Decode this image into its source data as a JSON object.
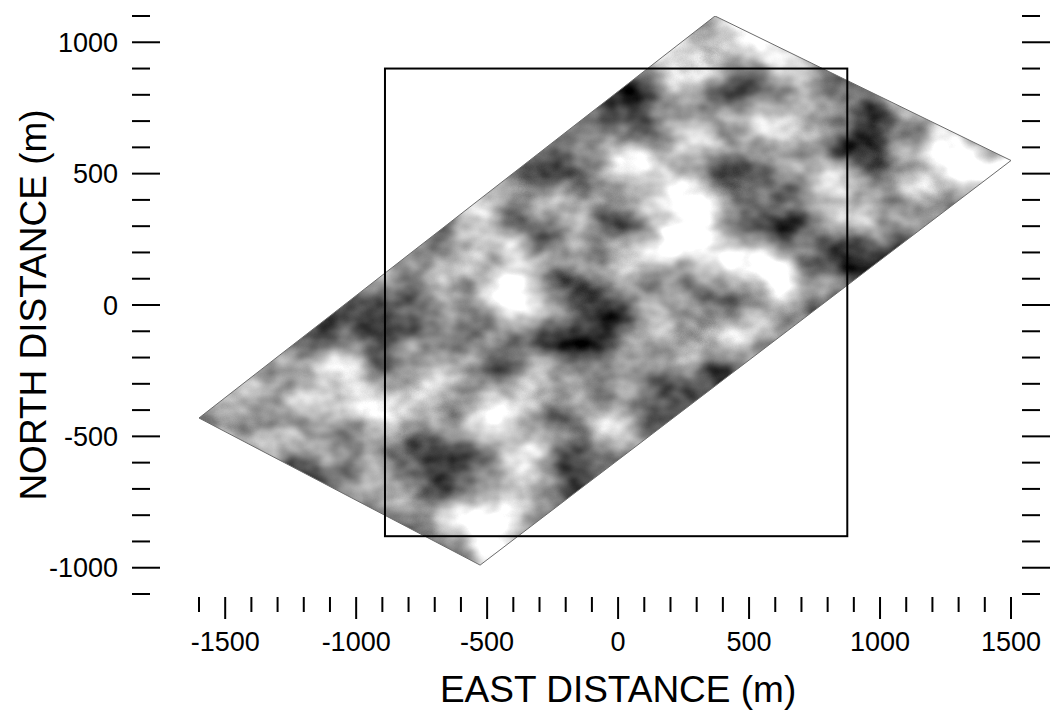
{
  "chart_data": {
    "type": "map",
    "x_label": "EAST DISTANCE (m)",
    "y_label": "NORTH DISTANCE (m)",
    "xlim": [
      -1600,
      1500
    ],
    "ylim": [
      -1100,
      1100
    ],
    "xticks": [
      -1500,
      -1000,
      -500,
      0,
      500,
      1000,
      1500
    ],
    "yticks": [
      -1000,
      -500,
      0,
      500,
      1000
    ],
    "xminor_ticks": [
      -1600,
      -1400,
      -1300,
      -1200,
      -1100,
      -900,
      -800,
      -700,
      -600,
      -400,
      -300,
      -200,
      -100,
      100,
      200,
      300,
      400,
      600,
      700,
      800,
      900,
      1100,
      1200,
      1300,
      1400
    ],
    "yminor_ticks": [
      -1100,
      -900,
      -800,
      -700,
      -600,
      -400,
      -300,
      -200,
      -100,
      100,
      200,
      300,
      400,
      600,
      700,
      800,
      900,
      1100
    ],
    "swath": {
      "x": [
        -1600,
        370,
        1500,
        -527
      ],
      "y": [
        -430,
        1100,
        550,
        -990
      ]
    },
    "box": {
      "x": [
        -890,
        875
      ],
      "y": [
        -880,
        900
      ]
    }
  }
}
